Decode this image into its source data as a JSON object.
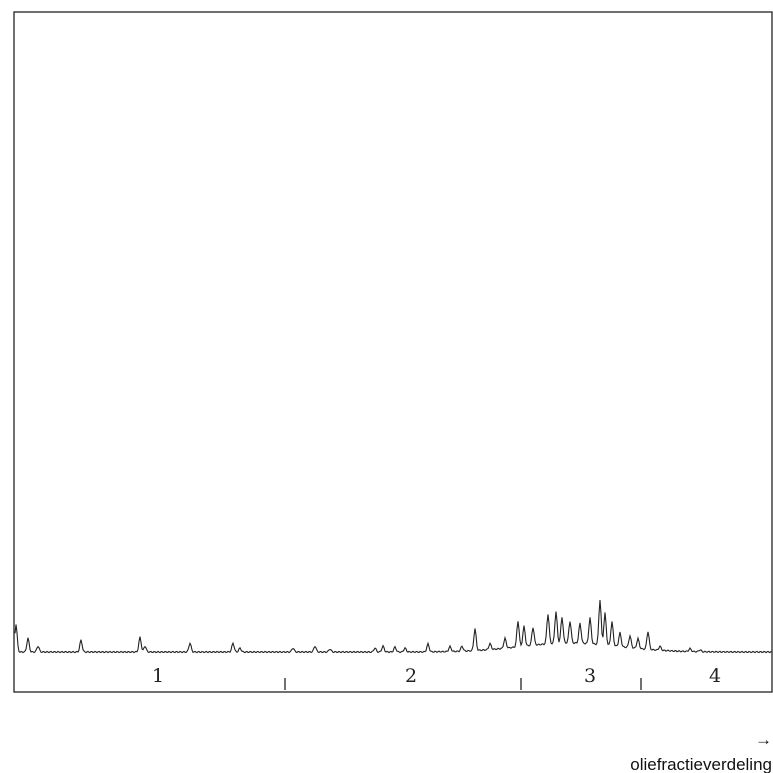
{
  "regions": [
    "1",
    "2",
    "3",
    "4"
  ],
  "axis_arrow": "→",
  "axis_label": "oliefractieverdeling"
}
